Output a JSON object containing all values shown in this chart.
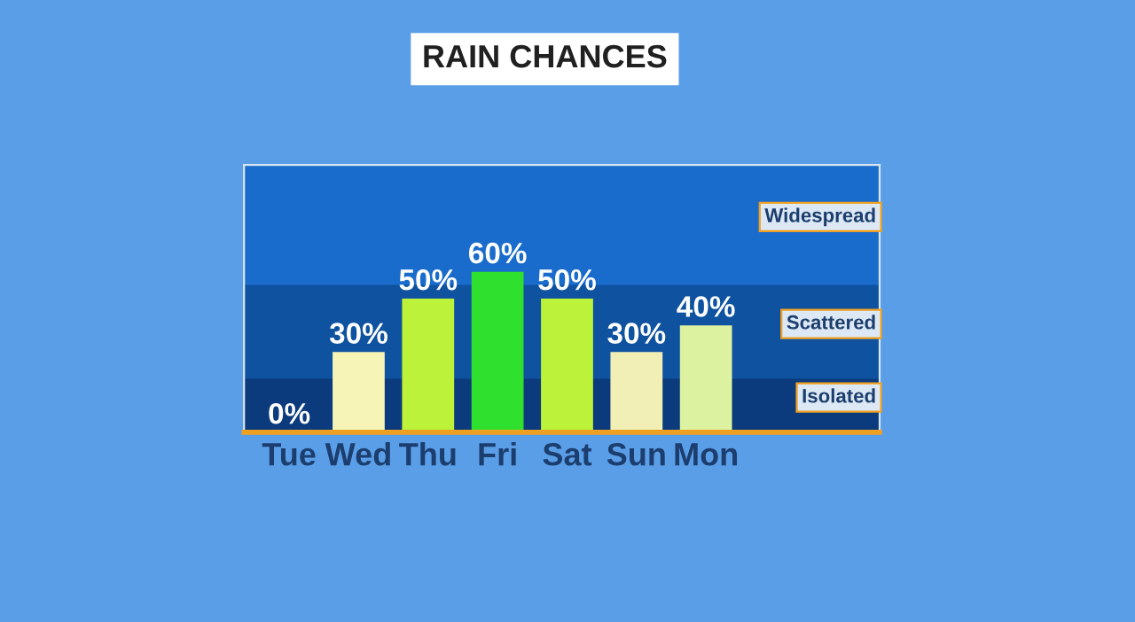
{
  "chart_data": {
    "type": "bar",
    "title": "RAIN CHANCES",
    "categories": [
      "Tue",
      "Wed",
      "Thu",
      "Fri",
      "Sat",
      "Sun",
      "Mon"
    ],
    "values": [
      0,
      30,
      50,
      60,
      50,
      30,
      40
    ],
    "colors": [
      "#f5f0b0",
      "#f7f4b8",
      "#bdf23a",
      "#2fe02f",
      "#bdf23a",
      "#f2efb6",
      "#dcf2a0"
    ],
    "value_labels": [
      "0%",
      "30%",
      "50%",
      "60%",
      "50%",
      "30%",
      "40%"
    ],
    "ylim": [
      0,
      100
    ],
    "tick_labels": "x",
    "bands": [
      {
        "axis": "y",
        "from": 0,
        "to": 20,
        "label": "Isolated",
        "color": "#0b3b7c"
      },
      {
        "axis": "y",
        "from": 20,
        "to": 55,
        "label": "Scattered",
        "color": "#0e52a0"
      },
      {
        "axis": "y",
        "from": 55,
        "to": 100,
        "label": "Widespread",
        "color": "#1a6ccc"
      }
    ]
  }
}
